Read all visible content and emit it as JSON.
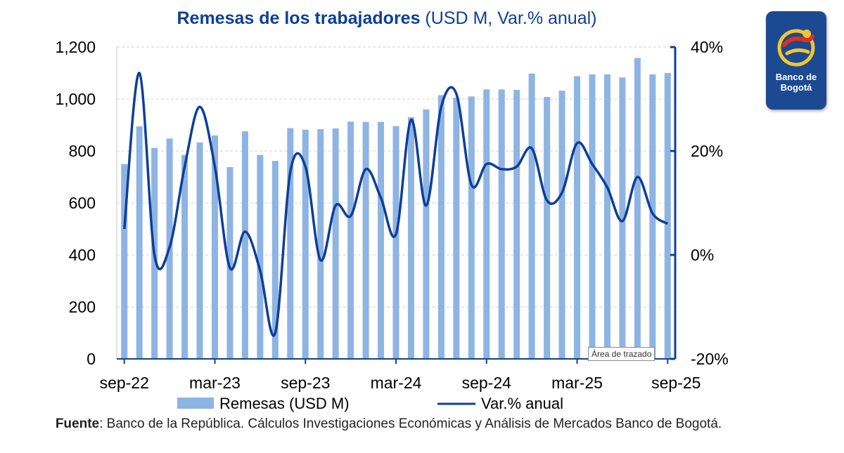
{
  "title_bold": "Remesas de los trabajadores",
  "title_rest": " (USD M, Var.% anual)",
  "source_label": "Fuente",
  "source_text": ": Banco de la República. Cálculos Investigaciones Económicas y Análisis de Mercados Banco de Bogotá.",
  "tooltip": "Área de trazado",
  "logo_text_line1": "Banco de",
  "logo_text_line2": "Bogotá",
  "colors": {
    "bars": "#8eb4e3",
    "line": "#0d3f99",
    "axis": "#0d3f99",
    "title": "#0d3f99",
    "logo_bg": "#1b4a93"
  },
  "chart_data": {
    "type": "bar+line",
    "x": [
      "sep-22",
      "oct-22",
      "nov-22",
      "dic-22",
      "ene-23",
      "feb-23",
      "mar-23",
      "abr-23",
      "may-23",
      "jun-23",
      "jul-23",
      "ago-23",
      "sep-23",
      "oct-23",
      "nov-23",
      "dic-23",
      "ene-24",
      "feb-24",
      "mar-24",
      "abr-24",
      "may-24",
      "jun-24",
      "jul-24",
      "ago-24",
      "sep-24",
      "oct-24",
      "nov-24",
      "dic-24",
      "ene-25",
      "feb-25",
      "mar-25",
      "abr-25",
      "may-25",
      "jun-25",
      "jul-25",
      "ago-25",
      "sep-25"
    ],
    "x_tick_labels": [
      "sep-22",
      "mar-23",
      "sep-23",
      "mar-24",
      "sep-24",
      "mar-25",
      "sep-25"
    ],
    "x_tick_positions": [
      "sep-22",
      "mar-23",
      "sep-23",
      "mar-24",
      "sep-24",
      "mar-25",
      "sep-25"
    ],
    "y_left": {
      "range": [
        0,
        1200
      ],
      "ticks": [
        0,
        200,
        400,
        600,
        800,
        1000,
        1200
      ],
      "tick_labels": [
        "0",
        "200",
        "400",
        "600",
        "800",
        "1,000",
        "1,200"
      ]
    },
    "y_right": {
      "range": [
        -20,
        40
      ],
      "ticks": [
        -20,
        0,
        20,
        40
      ],
      "tick_labels": [
        "-20%",
        "0%",
        "20%",
        "40%"
      ]
    },
    "grid": true,
    "legend_position": "bottom",
    "series": [
      {
        "name": "Remesas (USD M)",
        "type": "bar",
        "axis": "left",
        "values": [
          750,
          895,
          812,
          848,
          785,
          833,
          860,
          738,
          876,
          785,
          762,
          888,
          882,
          884,
          887,
          913,
          912,
          912,
          896,
          930,
          960,
          1015,
          1005,
          1010,
          1037,
          1037,
          1035,
          1098,
          1008,
          1032,
          1088,
          1095,
          1095,
          1083,
          1158,
          1095,
          1100
        ]
      },
      {
        "name": "Var.% anual",
        "type": "line",
        "axis": "right",
        "values": [
          5,
          35,
          0,
          1.5,
          17,
          28.5,
          17,
          -2.5,
          4.5,
          -3,
          -15,
          16,
          17,
          -1,
          9.5,
          7.5,
          16.5,
          11,
          4,
          26,
          9.5,
          28.5,
          31,
          13.5,
          17.5,
          16.5,
          17,
          20.5,
          10.5,
          12,
          21.5,
          17.5,
          13,
          6.5,
          15,
          8,
          6
        ]
      }
    ]
  }
}
